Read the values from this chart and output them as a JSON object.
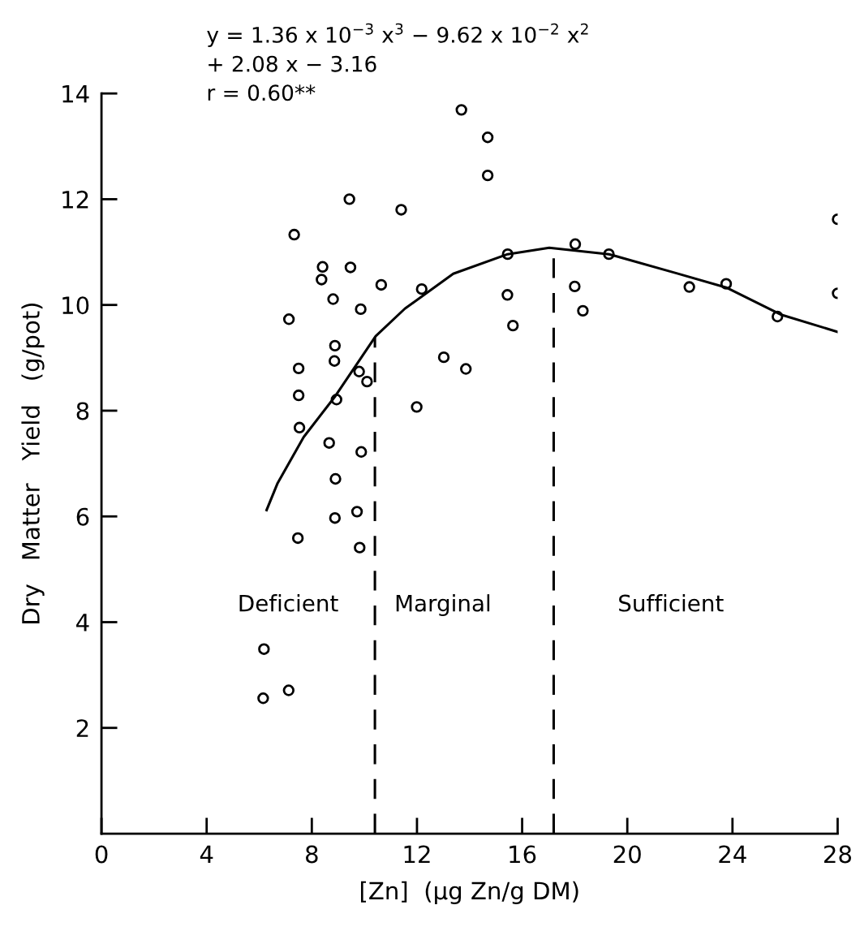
{
  "chart_data": {
    "type": "scatter",
    "xlabel": "[Zn]  (μg Zn/g DM)",
    "ylabel": "Dry   Matter   Yield   (g/pot)",
    "xlim": [
      0,
      28
    ],
    "ylim": [
      0,
      14
    ],
    "xticks": [
      0,
      4,
      8,
      12,
      16,
      20,
      24,
      28
    ],
    "yticks": [
      2,
      4,
      6,
      8,
      10,
      12,
      14
    ],
    "marker": "circle",
    "grid": false,
    "legend": false,
    "series": [
      {
        "color": "#000000",
        "x": [
          6.15,
          6.18,
          7.12,
          7.13,
          7.33,
          7.47,
          7.5,
          7.5,
          7.53,
          8.37,
          8.41,
          8.66,
          8.81,
          8.86,
          8.88,
          8.88,
          8.9,
          8.94,
          9.43,
          9.47,
          9.72,
          9.8,
          9.82,
          9.86,
          9.88,
          10.1,
          10.64,
          11.4,
          11.99,
          12.18,
          13.02,
          13.69,
          13.86,
          14.69,
          14.69,
          15.44,
          15.45,
          15.65,
          18.0,
          18.02,
          18.31,
          19.3,
          22.36,
          23.76,
          25.71,
          28.0,
          28.0
        ],
        "values": [
          2.56,
          3.49,
          2.71,
          9.73,
          11.33,
          5.59,
          8.8,
          8.29,
          7.68,
          10.48,
          10.72,
          7.39,
          10.11,
          8.94,
          9.23,
          5.97,
          6.71,
          8.21,
          12.0,
          10.71,
          6.09,
          8.74,
          5.41,
          9.92,
          7.22,
          8.55,
          10.38,
          11.8,
          8.07,
          10.3,
          9.01,
          13.69,
          8.79,
          13.17,
          12.45,
          10.19,
          10.96,
          9.61,
          10.35,
          11.15,
          9.89,
          10.96,
          10.34,
          10.4,
          9.78,
          10.22,
          11.62
        ]
      },
      {
        "type": "line",
        "color": "#000000",
        "line_style": "solid",
        "marker": "none",
        "x": [
          6.28,
          6.7,
          7.69,
          8.9,
          10.43,
          11.54,
          13.38,
          15.45,
          17.03,
          19.3,
          21.87,
          23.76,
          25.83,
          28.0
        ],
        "values": [
          6.12,
          6.63,
          7.5,
          8.28,
          9.41,
          9.93,
          10.59,
          10.96,
          11.08,
          10.96,
          10.6,
          10.33,
          9.82,
          9.49
        ]
      }
    ],
    "ref_lines": [
      {
        "axis": "x",
        "value": 10.4,
        "line_style": "dashed",
        "color": "#000000"
      },
      {
        "axis": "x",
        "value": 17.2,
        "line_style": "dashed",
        "color": "#000000"
      }
    ],
    "annotations": [
      "y = 1.36 x 10$^{−3}$ x$^{3}$ − 9.62 x 10$^{−2}$ x$^{2}$\n+ 2.08 x − 3.16\nr = 0.60**",
      "Deficient",
      "Marginal",
      "Sufficient"
    ]
  }
}
